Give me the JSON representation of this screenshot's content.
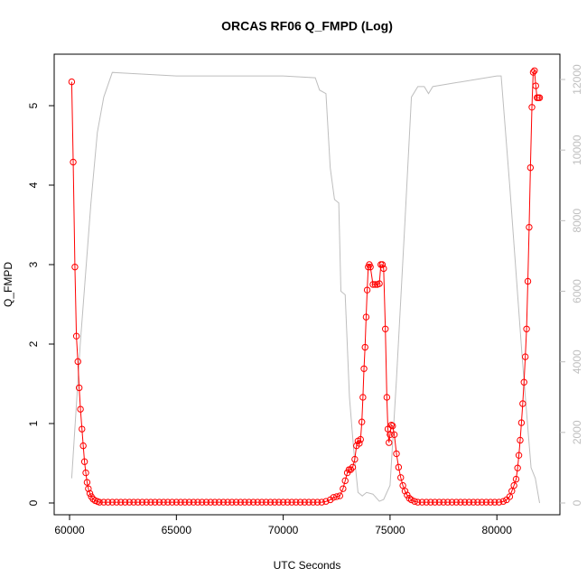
{
  "chart_data": {
    "type": "line",
    "title": "ORCAS RF06 Q_FMPD (Log)",
    "x_label": "UTC Seconds",
    "y_label": "Q_FMPD",
    "xlim": [
      59280,
      82950
    ],
    "ylim": [
      -0.148,
      5.648
    ],
    "y2lim": [
      -333,
      12717
    ],
    "xticks": [
      60000,
      65000,
      70000,
      75000,
      80000
    ],
    "yticks": [
      0,
      1,
      2,
      3,
      4,
      5
    ],
    "y2ticks": [
      0,
      2000,
      4000,
      6000,
      8000,
      10000,
      12000
    ],
    "series": [
      {
        "color": "#ff0000",
        "marker": "circle",
        "x": [
          60100,
          60170,
          60250,
          60320,
          60390,
          60450,
          60510,
          60580,
          60640,
          60700,
          60760,
          60820,
          60880,
          60950,
          61020,
          61100,
          61200,
          61300,
          61400,
          61600,
          61800,
          62000,
          62200,
          62400,
          62600,
          62800,
          63000,
          63200,
          63400,
          63600,
          63800,
          64000,
          64200,
          64400,
          64600,
          64800,
          65000,
          65200,
          65400,
          65600,
          65800,
          66000,
          66200,
          66400,
          66600,
          66800,
          67000,
          67200,
          67400,
          67600,
          67800,
          68000,
          68200,
          68400,
          68600,
          68800,
          69000,
          69200,
          69400,
          69600,
          69800,
          70000,
          70200,
          70400,
          70600,
          70800,
          71000,
          71200,
          71400,
          71600,
          71800,
          72000,
          72200,
          72350,
          72500,
          72650,
          72800,
          72900,
          73000,
          73080,
          73160,
          73250,
          73350,
          73430,
          73500,
          73560,
          73620,
          73680,
          73730,
          73780,
          73830,
          73880,
          73930,
          73980,
          74030,
          74080,
          74200,
          74300,
          74400,
          74500,
          74570,
          74640,
          74700,
          74780,
          74850,
          74900,
          74950,
          75000,
          75060,
          75120,
          75200,
          75300,
          75400,
          75500,
          75600,
          75700,
          75800,
          75900,
          76000,
          76150,
          76300,
          76500,
          76700,
          76900,
          77100,
          77300,
          77500,
          77700,
          77900,
          78100,
          78300,
          78500,
          78700,
          78900,
          79100,
          79300,
          79500,
          79700,
          79900,
          80100,
          80300,
          80450,
          80600,
          80700,
          80800,
          80900,
          80970,
          81030,
          81090,
          81150,
          81210,
          81270,
          81330,
          81390,
          81450,
          81510,
          81570,
          81640,
          81700,
          81760,
          81820,
          81880,
          81940,
          82000
        ],
        "values": [
          5.3,
          4.29,
          2.97,
          2.1,
          1.78,
          1.45,
          1.18,
          0.93,
          0.72,
          0.52,
          0.38,
          0.26,
          0.18,
          0.12,
          0.08,
          0.05,
          0.03,
          0.02,
          0.01,
          0.01,
          0.01,
          0.01,
          0.01,
          0.01,
          0.01,
          0.01,
          0.01,
          0.01,
          0.01,
          0.01,
          0.01,
          0.01,
          0.01,
          0.01,
          0.01,
          0.01,
          0.01,
          0.01,
          0.01,
          0.01,
          0.01,
          0.01,
          0.01,
          0.01,
          0.01,
          0.01,
          0.01,
          0.01,
          0.01,
          0.01,
          0.01,
          0.01,
          0.01,
          0.01,
          0.01,
          0.01,
          0.01,
          0.01,
          0.01,
          0.01,
          0.01,
          0.01,
          0.01,
          0.01,
          0.01,
          0.01,
          0.01,
          0.01,
          0.01,
          0.01,
          0.01,
          0.02,
          0.04,
          0.07,
          0.08,
          0.09,
          0.18,
          0.28,
          0.38,
          0.42,
          0.42,
          0.45,
          0.55,
          0.72,
          0.78,
          0.75,
          0.8,
          1.02,
          1.33,
          1.69,
          1.96,
          2.34,
          2.68,
          2.97,
          3.0,
          2.97,
          2.75,
          2.75,
          2.75,
          2.76,
          3.0,
          3.0,
          2.95,
          2.19,
          1.33,
          0.93,
          0.76,
          0.86,
          0.98,
          0.97,
          0.86,
          0.62,
          0.45,
          0.32,
          0.22,
          0.15,
          0.1,
          0.06,
          0.04,
          0.02,
          0.01,
          0.01,
          0.01,
          0.01,
          0.01,
          0.01,
          0.01,
          0.01,
          0.01,
          0.01,
          0.01,
          0.01,
          0.01,
          0.01,
          0.01,
          0.01,
          0.01,
          0.01,
          0.01,
          0.01,
          0.02,
          0.04,
          0.08,
          0.15,
          0.22,
          0.3,
          0.44,
          0.6,
          0.79,
          1.01,
          1.25,
          1.52,
          1.84,
          2.19,
          2.79,
          3.47,
          4.22,
          4.98,
          5.42,
          5.44,
          5.25,
          5.1,
          5.1,
          5.1
        ]
      },
      {
        "color": "#bebebe",
        "axis": "y2",
        "x": [
          60100,
          60500,
          61000,
          61300,
          61600,
          62000,
          65000,
          70000,
          71500,
          71700,
          72000,
          72200,
          72400,
          72600,
          72700,
          72900,
          73100,
          73300,
          73500,
          73700,
          73900,
          74200,
          74500,
          74700,
          75000,
          75300,
          75700,
          76000,
          76300,
          76600,
          76800,
          77000,
          78000,
          80000,
          80200,
          80600,
          81200,
          81600,
          81800,
          82000
        ],
        "values": [
          700,
          4500,
          8500,
          10500,
          11500,
          12200,
          12100,
          12100,
          12050,
          11700,
          11600,
          9500,
          8600,
          8500,
          6000,
          5900,
          3000,
          1500,
          300,
          200,
          300,
          250,
          50,
          100,
          500,
          3500,
          8000,
          11500,
          11800,
          11800,
          11600,
          11800,
          11900,
          12100,
          12100,
          9000,
          4000,
          1000,
          700,
          0
        ]
      }
    ]
  }
}
